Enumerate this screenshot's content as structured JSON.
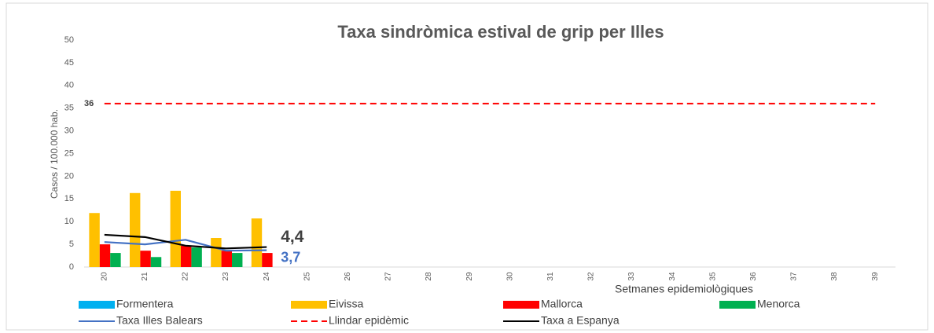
{
  "chart_data": {
    "type": "bar",
    "title": "Taxa sindròmica estival de grip per Illes",
    "x_label": "Setmanes epidemiològiques",
    "y_label": "Casos / 100.000 hab.",
    "categories": [
      "20",
      "21",
      "22",
      "23",
      "24",
      "25",
      "26",
      "27",
      "28",
      "29",
      "30",
      "31",
      "32",
      "33",
      "34",
      "35",
      "36",
      "37",
      "38",
      "39"
    ],
    "ylim": [
      0,
      50
    ],
    "yticks": [
      0,
      5,
      10,
      15,
      20,
      25,
      30,
      35,
      40,
      45,
      50
    ],
    "series": [
      {
        "name": "Formentera",
        "type": "bar",
        "color": "#00b0f0",
        "values": [
          null,
          null,
          null,
          null,
          null,
          null,
          null,
          null,
          null,
          null,
          null,
          null,
          null,
          null,
          null,
          null,
          null,
          null,
          null,
          null
        ]
      },
      {
        "name": "Eivissa",
        "type": "bar",
        "color": "#ffc000",
        "values": [
          11.9,
          16.3,
          16.8,
          6.4,
          10.7,
          null,
          null,
          null,
          null,
          null,
          null,
          null,
          null,
          null,
          null,
          null,
          null,
          null,
          null,
          null
        ]
      },
      {
        "name": "Mallorca",
        "type": "bar",
        "color": "#ff0000",
        "values": [
          5.0,
          3.6,
          4.7,
          3.6,
          3.1,
          null,
          null,
          null,
          null,
          null,
          null,
          null,
          null,
          null,
          null,
          null,
          null,
          null,
          null,
          null
        ]
      },
      {
        "name": "Menorca",
        "type": "bar",
        "color": "#00b050",
        "values": [
          3.1,
          2.2,
          4.3,
          3.1,
          null,
          null,
          null,
          null,
          null,
          null,
          null,
          null,
          null,
          null,
          null,
          null,
          null,
          null,
          null,
          null
        ]
      },
      {
        "name": "Taxa  Illes Balears",
        "type": "line",
        "color": "#4472c4",
        "values": [
          5.5,
          5.0,
          6.0,
          3.6,
          3.7,
          null,
          null,
          null,
          null,
          null,
          null,
          null,
          null,
          null,
          null,
          null,
          null,
          null,
          null,
          null
        ],
        "value_labels": [
          null,
          null,
          null,
          null,
          "3,7",
          null,
          null,
          null,
          null,
          null,
          null,
          null,
          null,
          null,
          null,
          null,
          null,
          null,
          null,
          null
        ]
      },
      {
        "name": "Llindar epidèmic",
        "type": "line",
        "dashed": true,
        "color": "#ff0000",
        "values": [
          36,
          36,
          36,
          36,
          36,
          36,
          36,
          36,
          36,
          36,
          36,
          36,
          36,
          36,
          36,
          36,
          36,
          36,
          36,
          36
        ],
        "value_labels": [
          "36",
          null,
          null,
          null,
          null,
          null,
          null,
          null,
          null,
          null,
          null,
          null,
          null,
          null,
          null,
          null,
          null,
          null,
          null,
          null
        ]
      },
      {
        "name": "Taxa a Espanya",
        "type": "line",
        "color": "#000000",
        "values": [
          7.1,
          6.6,
          4.7,
          4.1,
          4.4,
          null,
          null,
          null,
          null,
          null,
          null,
          null,
          null,
          null,
          null,
          null,
          null,
          null,
          null,
          null
        ],
        "value_labels": [
          null,
          null,
          null,
          null,
          "4,4",
          null,
          null,
          null,
          null,
          null,
          null,
          null,
          null,
          null,
          null,
          null,
          null,
          null,
          null,
          null
        ]
      }
    ]
  }
}
